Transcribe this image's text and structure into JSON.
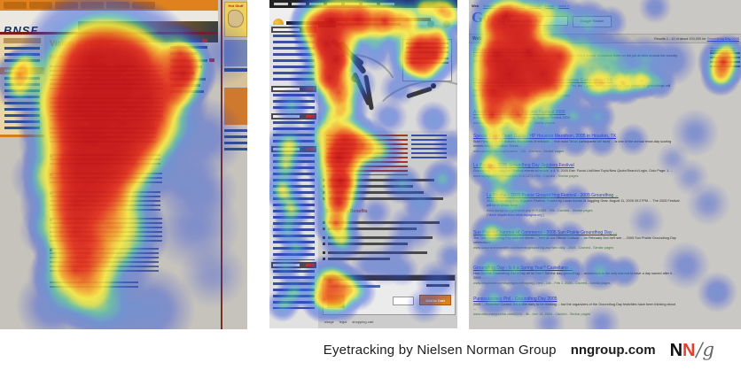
{
  "caption": {
    "text": "Eyetracking by Nielsen Norman Group",
    "site": "nngroup.com",
    "logo_n1": "N",
    "logo_n2": "N",
    "logo_g": "/g"
  },
  "colors": {
    "heat_red": "#c41216",
    "heat_yellow": "#faed3c",
    "heat_blue": "#2346db",
    "bnsf_orange": "#e0821e",
    "google_link_blue": "#2f3fbf"
  },
  "heat": {
    "palette": [
      [
        0.0,
        "rgba(20,40,210,0)"
      ],
      [
        0.18,
        "rgba(35,70,219,0.42)"
      ],
      [
        0.38,
        "rgba(50,115,222,0.58)"
      ],
      [
        0.52,
        "rgba(65,185,155,0.66)"
      ],
      [
        0.63,
        "rgba(205,225,75,0.78)"
      ],
      [
        0.71,
        "rgba(250,237,60,0.85)"
      ],
      [
        0.82,
        "rgba(245,148,38,0.90)"
      ],
      [
        0.92,
        "rgba(226,48,28,0.94)"
      ],
      [
        1.0,
        "rgba(196,18,22,0.96)"
      ]
    ]
  },
  "panels": {
    "bnsf": {
      "name": "BNSF corporate page heatmap",
      "logo": "BNSF",
      "logo_sub": "RAILWAY",
      "sidebar_active": "About BNSF",
      "heading": "Vision & Values",
      "subheading": "Defining What's Important",
      "hot_box_title": "Hot Stuff",
      "heat": [
        [
          105,
          70,
          40,
          1
        ],
        [
          145,
          75,
          38,
          0.95
        ],
        [
          120,
          100,
          42,
          1
        ],
        [
          165,
          110,
          34,
          0.9
        ],
        [
          90,
          120,
          36,
          1
        ],
        [
          140,
          140,
          34,
          0.85
        ],
        [
          100,
          155,
          38,
          1
        ],
        [
          170,
          145,
          26,
          0.7
        ],
        [
          125,
          175,
          30,
          0.8
        ],
        [
          90,
          190,
          32,
          0.95
        ],
        [
          150,
          185,
          26,
          0.6
        ],
        [
          115,
          215,
          30,
          0.7
        ],
        [
          85,
          230,
          30,
          0.9
        ],
        [
          130,
          240,
          26,
          0.55
        ],
        [
          85,
          262,
          26,
          0.85
        ],
        [
          100,
          285,
          24,
          0.7
        ],
        [
          85,
          305,
          24,
          0.8
        ],
        [
          100,
          330,
          22,
          0.6
        ],
        [
          130,
          295,
          22,
          0.45
        ],
        [
          145,
          265,
          22,
          0.5
        ],
        [
          120,
          350,
          22,
          0.4
        ],
        [
          203,
          60,
          16,
          0.75
        ],
        [
          207,
          84,
          18,
          0.95
        ],
        [
          202,
          105,
          14,
          0.55
        ],
        [
          215,
          70,
          12,
          0.5
        ],
        [
          22,
          85,
          14,
          0.8
        ],
        [
          20,
          103,
          11,
          0.5
        ],
        [
          28,
          70,
          10,
          0.5
        ],
        [
          230,
          155,
          22,
          0.25
        ],
        [
          220,
          255,
          24,
          0.2
        ],
        [
          60,
          345,
          20,
          0.3
        ],
        [
          170,
          350,
          24,
          0.3
        ],
        [
          250,
          60,
          18,
          0.18
        ],
        [
          205,
          200,
          20,
          0.25
        ],
        [
          240,
          310,
          18,
          0.15
        ],
        [
          45,
          200,
          16,
          0.25
        ],
        [
          50,
          260,
          14,
          0.2
        ],
        [
          235,
          215,
          16,
          0.15
        ],
        [
          60,
          310,
          14,
          0.25
        ]
      ]
    },
    "store": {
      "name": "E-commerce tool product page heatmap",
      "benefits_heading": "Series Key Benefits",
      "add_to_cart": "Add to Cart",
      "footer_links": [
        "usage",
        "legal",
        "shopping cart"
      ],
      "heat": [
        [
          70,
          24,
          22,
          1
        ],
        [
          100,
          22,
          20,
          0.95
        ],
        [
          130,
          24,
          18,
          0.9
        ],
        [
          50,
          28,
          14,
          0.7
        ],
        [
          155,
          22,
          14,
          0.7
        ],
        [
          195,
          12,
          14,
          0.8
        ],
        [
          175,
          8,
          10,
          0.6
        ],
        [
          208,
          20,
          10,
          0.5
        ],
        [
          65,
          50,
          18,
          1
        ],
        [
          75,
          68,
          17,
          1
        ],
        [
          68,
          88,
          16,
          0.95
        ],
        [
          78,
          105,
          14,
          0.8
        ],
        [
          85,
          122,
          13,
          0.6
        ],
        [
          72,
          132,
          12,
          0.5
        ],
        [
          168,
          52,
          17,
          0.95
        ],
        [
          186,
          62,
          15,
          0.9
        ],
        [
          162,
          70,
          14,
          0.85
        ],
        [
          190,
          45,
          12,
          0.75
        ],
        [
          176,
          80,
          12,
          0.6
        ],
        [
          60,
          150,
          12,
          0.5
        ],
        [
          100,
          95,
          10,
          0.4
        ],
        [
          120,
          60,
          10,
          0.35
        ],
        [
          145,
          100,
          10,
          0.3
        ],
        [
          25,
          120,
          10,
          0.5
        ],
        [
          22,
          165,
          13,
          0.7
        ],
        [
          18,
          188,
          11,
          0.6
        ],
        [
          15,
          215,
          11,
          0.7
        ],
        [
          25,
          237,
          11,
          0.65
        ],
        [
          20,
          260,
          9,
          0.5
        ],
        [
          30,
          280,
          9,
          0.5
        ],
        [
          18,
          300,
          9,
          0.45
        ],
        [
          28,
          330,
          10,
          0.55
        ],
        [
          15,
          345,
          9,
          0.5
        ],
        [
          85,
          158,
          18,
          0.9
        ],
        [
          78,
          178,
          20,
          1
        ],
        [
          105,
          165,
          16,
          0.7
        ],
        [
          125,
          170,
          13,
          0.55
        ],
        [
          80,
          205,
          17,
          1
        ],
        [
          78,
          228,
          15,
          0.95
        ],
        [
          75,
          252,
          13,
          0.85
        ],
        [
          82,
          272,
          12,
          0.6
        ],
        [
          68,
          318,
          15,
          0.85
        ],
        [
          85,
          325,
          13,
          0.7
        ],
        [
          62,
          338,
          13,
          0.8
        ],
        [
          80,
          342,
          11,
          0.6
        ],
        [
          100,
          330,
          10,
          0.45
        ],
        [
          150,
          208,
          11,
          0.45
        ],
        [
          170,
          228,
          10,
          0.4
        ],
        [
          195,
          202,
          11,
          0.5
        ],
        [
          160,
          258,
          13,
          0.3
        ],
        [
          130,
          300,
          11,
          0.25
        ],
        [
          190,
          318,
          12,
          0.3
        ],
        [
          205,
          290,
          9,
          0.25
        ],
        [
          200,
          255,
          10,
          0.25
        ],
        [
          135,
          132,
          10,
          0.3
        ],
        [
          185,
          135,
          10,
          0.35
        ],
        [
          205,
          165,
          10,
          0.3
        ],
        [
          150,
          305,
          9,
          0.25
        ],
        [
          175,
          345,
          10,
          0.25
        ],
        [
          110,
          300,
          9,
          0.2
        ],
        [
          40,
          90,
          9,
          0.3
        ],
        [
          120,
          240,
          9,
          0.25
        ],
        [
          145,
          280,
          9,
          0.2
        ]
      ]
    },
    "google": {
      "name": "Google SERP heatmap",
      "tabs": [
        "Web",
        "Images",
        "Groups",
        "News",
        "Froogle",
        "Local",
        "more »"
      ],
      "logo_letters": [
        "G",
        "o",
        "o",
        "g",
        "l",
        "e"
      ],
      "query": "Groundhog Day 2005",
      "search_button": "Google Search",
      "results_bar_left": "Web",
      "results_stats": "Results 1 - 10 of about 193,000 for",
      "results_query_link": "Groundhog Day 2005",
      "sponsored_title": "Groundhog Day",
      "results": [
        {
          "title": "Groundhog Job Shadow Day",
          "snippet": "Describes a project that begins on Groundhog Day, pairing a student with a worker to shadow them on the job at sites around the country.",
          "url": "www.jobshadow.org/ - 12k - Cached - Similar pages"
        },
        {
          "title": "Groundhog.org - the Official Site of the Punxsutawney Groundhog Club",
          "snippet": "The Groundhog Day 2005 celebration in honor of Punxsutawney Phil, the ... place to request that all hope placed for groundhogs will come to pass ...",
          "url": "www.groundhog.org/ - 8k - Feb 2, 2005 - Cached - Similar pages"
        },
        {
          "title": "Atlanta Groundhog Day Jugglers Festival 2005",
          "snippet": "Atlanta Jugglers Association - Groundhog Jugglers Festival 2005.",
          "url": "www.atlantajugglers.org/ - 9k - Cached - Similar pages"
        },
        {
          "title": "Special Event Open Guide - HP Houston Marathon, 2005 in Houston, TX",
          "snippet": "Start Here - This TX features thousands of entrants ... that most Texan participants will face) ... is one of the annual show-day scoring events held in Houston, Texas ...",
          "url": "www.openguides.org/houston - 21k - Cached - Similar pages"
        },
        {
          "title": "La Pagina - 2005 Groundhog Day Jugglers Festival",
          "snippet": "Groundhog Day Jugglers Festival events schedule, a 4, 5, 2005 Estr. Focus List/New Topic/New Quote/Search/Login, Goto Page: 1 ...",
          "url": "www.lapagina.org/festival.php?f=5,1471,1%c - Cached - Similar pages"
        },
        {
          "title": "La Pagina - 2005 Prairie Ground Hog Festival - 2005 Groundhog ...",
          "snippet": "2005 Groundhog Day Jugglers Festival. Posted by Lucas Adrian of Juggling Gear. August 11, 2005 09:27PM ... The 2005 Festival will be in Cross Keys ...",
          "url": "www.lapagina.org/festival.php?f=5,1485 - 30k - Cached - Similar pages",
          "more": "[ More results from www.lapagina.org ]"
        },
        {
          "title": "Sun Prairie Chamber of Commerce - 2005 Sun Prairie Groundhog Day ...",
          "snippet": "The 26th Groundhog Day podcast dinner ... held at our Official Outdoor ... on February 2nd he'll see ... 2005 Sun Prairie Groundhog Day celebration! ...",
          "url": "www.sunprairiechamber.com/events/groundhog.asp?sec=day - 2005 - Cached - Similar pages"
        },
        {
          "title": "Groundhog Day - Is it a Spring Year? Castellano ...",
          "snippet": "How Did the Groundhog Get a Day all its Own? Did the lazy groundhog ... woodchuck is the only marmot to have a day named after it ... 2005 ...",
          "url": "www.infoplease.com/spot/groundhogday1.html - 14k - Feb 1, 2005 - Cached - Similar pages"
        },
        {
          "title": "Punxsutawney Phil - Groundhog Day 2005",
          "snippet": "2005 ... Frostbite! Correct. It's a little early to be thinking ... but the organizers of the Groundhog Day festivities have been thinking about ...",
          "url": "www.wisconsinjournal.com/6224/ - 8k - Dec 14, 2004 - Cached - Similar pages"
        }
      ],
      "heat": [
        [
          42,
          20,
          20,
          1
        ],
        [
          66,
          24,
          16,
          0.85
        ],
        [
          88,
          14,
          13,
          0.6
        ],
        [
          110,
          20,
          11,
          0.5
        ],
        [
          135,
          24,
          12,
          0.5
        ],
        [
          55,
          38,
          14,
          0.65
        ],
        [
          28,
          28,
          12,
          0.7
        ],
        [
          160,
          25,
          9,
          0.35
        ],
        [
          210,
          8,
          9,
          0.25
        ],
        [
          32,
          62,
          24,
          1
        ],
        [
          68,
          60,
          24,
          1
        ],
        [
          102,
          64,
          19,
          0.9
        ],
        [
          45,
          84,
          24,
          1
        ],
        [
          84,
          84,
          19,
          0.95
        ],
        [
          28,
          104,
          20,
          0.95
        ],
        [
          64,
          104,
          18,
          0.85
        ],
        [
          98,
          100,
          15,
          0.7
        ],
        [
          135,
          62,
          17,
          0.6
        ],
        [
          165,
          66,
          14,
          0.5
        ],
        [
          198,
          68,
          13,
          0.45
        ],
        [
          228,
          68,
          14,
          0.3
        ],
        [
          135,
          95,
          13,
          0.45
        ],
        [
          150,
          94,
          13,
          0.7
        ],
        [
          175,
          94,
          12,
          0.75
        ],
        [
          196,
          92,
          10,
          0.7
        ],
        [
          215,
          94,
          9,
          0.45
        ],
        [
          26,
          130,
          15,
          0.9
        ],
        [
          56,
          130,
          13,
          0.8
        ],
        [
          88,
          131,
          12,
          0.6
        ],
        [
          118,
          131,
          10,
          0.5
        ],
        [
          145,
          132,
          10,
          0.45
        ],
        [
          60,
          142,
          10,
          0.45
        ],
        [
          30,
          157,
          13,
          0.75
        ],
        [
          60,
          158,
          11,
          0.55
        ],
        [
          90,
          159,
          10,
          0.45
        ],
        [
          120,
          160,
          9,
          0.4
        ],
        [
          150,
          160,
          9,
          0.35
        ],
        [
          185,
          158,
          9,
          0.3
        ],
        [
          24,
          188,
          13,
          0.8
        ],
        [
          52,
          189,
          12,
          0.6
        ],
        [
          84,
          190,
          10,
          0.5
        ],
        [
          40,
          200,
          9,
          0.4
        ],
        [
          34,
          222,
          12,
          0.7
        ],
        [
          60,
          223,
          11,
          0.55
        ],
        [
          90,
          224,
          10,
          0.45
        ],
        [
          120,
          225,
          9,
          0.35
        ],
        [
          50,
          236,
          9,
          0.35
        ],
        [
          26,
          264,
          12,
          0.7
        ],
        [
          54,
          265,
          11,
          0.55
        ],
        [
          84,
          266,
          10,
          0.45
        ],
        [
          114,
          267,
          9,
          0.35
        ],
        [
          24,
          304,
          11,
          0.6
        ],
        [
          52,
          305,
          10,
          0.5
        ],
        [
          80,
          306,
          9,
          0.4
        ],
        [
          115,
          306,
          8,
          0.45
        ],
        [
          148,
          306,
          11,
          0.5
        ],
        [
          175,
          307,
          9,
          0.4
        ],
        [
          28,
          338,
          10,
          0.55
        ],
        [
          56,
          340,
          9,
          0.45
        ],
        [
          84,
          341,
          8,
          0.3
        ],
        [
          287,
          70,
          14,
          0.9
        ],
        [
          284,
          86,
          11,
          0.7
        ],
        [
          292,
          57,
          9,
          0.45
        ],
        [
          255,
          150,
          13,
          0.2
        ],
        [
          270,
          230,
          12,
          0.18
        ],
        [
          245,
          300,
          13,
          0.22
        ],
        [
          280,
          330,
          11,
          0.28
        ],
        [
          250,
          200,
          10,
          0.15
        ],
        [
          200,
          250,
          10,
          0.15
        ],
        [
          230,
          180,
          9,
          0.15
        ],
        [
          60,
          330,
          9,
          0.2
        ],
        [
          150,
          365,
          10,
          0.2
        ],
        [
          90,
          365,
          9,
          0.18
        ]
      ]
    }
  }
}
